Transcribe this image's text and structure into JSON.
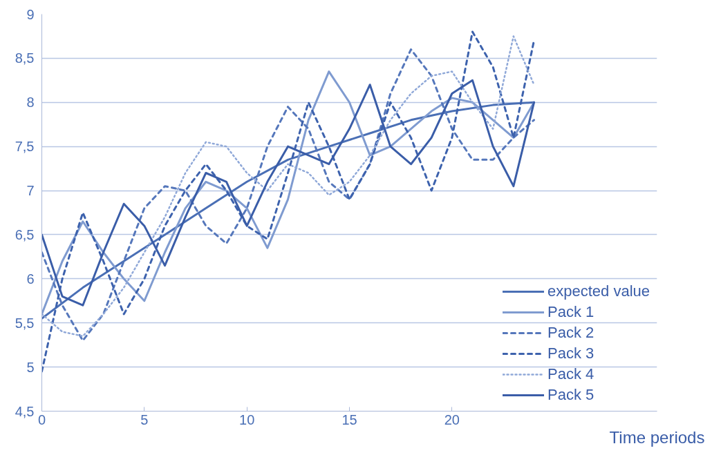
{
  "chart_data": {
    "type": "line",
    "xlabel": "Time periods",
    "xlim": [
      0,
      30
    ],
    "xticks": [
      0,
      5,
      10,
      15,
      20
    ],
    "ylim": [
      4.5,
      9
    ],
    "yticks": [
      {
        "value": 4.5,
        "label": "4,5"
      },
      5,
      {
        "value": 5.5,
        "label": "5,5"
      },
      6,
      {
        "value": 6.5,
        "label": "6,5"
      },
      7,
      {
        "value": 7.5,
        "label": "7,5"
      },
      8,
      {
        "value": 8.5,
        "label": "8,5"
      },
      9
    ],
    "grid": "y",
    "legend": "right",
    "marker": "none",
    "series": [
      {
        "name": "expected value",
        "color": "#4a6fb5",
        "line_style": "solid",
        "x": [
          0,
          2,
          4,
          6,
          8,
          10,
          12,
          14,
          16,
          18,
          20,
          22,
          24
        ],
        "values": [
          5.55,
          5.9,
          6.2,
          6.5,
          6.8,
          7.1,
          7.35,
          7.5,
          7.65,
          7.8,
          7.9,
          7.97,
          8.0
        ]
      },
      {
        "name": "Pack 1",
        "color": "#7f9bd0",
        "line_style": "solid",
        "x": [
          0,
          1,
          2,
          3,
          4,
          5,
          6,
          7,
          8,
          9,
          10,
          11,
          12,
          13,
          14,
          15,
          16,
          17,
          18,
          19,
          20,
          21,
          22,
          23,
          24
        ],
        "values": [
          5.6,
          6.2,
          6.65,
          6.3,
          6.0,
          5.75,
          6.3,
          6.8,
          7.1,
          7.0,
          6.8,
          6.35,
          6.9,
          7.8,
          8.35,
          8.0,
          7.4,
          7.5,
          7.7,
          7.9,
          8.05,
          8.0,
          7.8,
          7.6,
          8.0
        ]
      },
      {
        "name": "Pack 2",
        "color": "#5577bb",
        "line_style": "dashed",
        "x": [
          0,
          1,
          2,
          3,
          4,
          5,
          6,
          7,
          8,
          9,
          10,
          11,
          12,
          13,
          14,
          15,
          16,
          17,
          18,
          19,
          20,
          21,
          22,
          23,
          24
        ],
        "values": [
          6.3,
          5.7,
          5.3,
          5.6,
          6.2,
          6.8,
          7.05,
          7.0,
          6.6,
          6.4,
          6.8,
          7.5,
          7.95,
          7.7,
          7.1,
          6.9,
          7.3,
          8.1,
          8.6,
          8.3,
          7.7,
          7.35,
          7.35,
          7.6,
          7.8
        ]
      },
      {
        "name": "Pack 3",
        "color": "#3d62ad",
        "line_style": "dashed",
        "x": [
          0,
          1,
          2,
          3,
          4,
          5,
          6,
          7,
          8,
          9,
          10,
          11,
          12,
          13,
          14,
          15,
          16,
          17,
          18,
          19,
          20,
          21,
          22,
          23,
          24
        ],
        "values": [
          4.95,
          6.0,
          6.75,
          6.2,
          5.6,
          6.0,
          6.6,
          7.0,
          7.3,
          7.0,
          6.6,
          6.45,
          7.2,
          8.0,
          7.5,
          6.9,
          7.3,
          8.0,
          7.6,
          7.0,
          7.6,
          8.8,
          8.4,
          7.6,
          8.7
        ]
      },
      {
        "name": "Pack 4",
        "color": "#8fa8d8",
        "line_style": "dotted",
        "x": [
          0,
          1,
          2,
          3,
          4,
          5,
          6,
          7,
          8,
          9,
          10,
          11,
          12,
          13,
          14,
          15,
          16,
          17,
          18,
          19,
          20,
          21,
          22,
          23,
          24
        ],
        "values": [
          5.6,
          5.4,
          5.35,
          5.6,
          5.9,
          6.3,
          6.7,
          7.2,
          7.55,
          7.5,
          7.2,
          7.0,
          7.3,
          7.2,
          6.95,
          7.1,
          7.4,
          7.8,
          8.1,
          8.3,
          8.35,
          8.0,
          7.7,
          8.75,
          8.2
        ]
      },
      {
        "name": "Pack 5",
        "color": "#3a5da8",
        "line_style": "solid",
        "x": [
          0,
          1,
          2,
          3,
          4,
          5,
          6,
          7,
          8,
          9,
          10,
          11,
          12,
          13,
          14,
          15,
          16,
          17,
          18,
          19,
          20,
          21,
          22,
          23,
          24
        ],
        "values": [
          6.5,
          5.8,
          5.7,
          6.3,
          6.85,
          6.6,
          6.15,
          6.7,
          7.2,
          7.1,
          6.6,
          7.1,
          7.5,
          7.4,
          7.3,
          7.7,
          8.2,
          7.5,
          7.3,
          7.6,
          8.1,
          8.25,
          7.5,
          7.05,
          8.0
        ]
      }
    ]
  }
}
